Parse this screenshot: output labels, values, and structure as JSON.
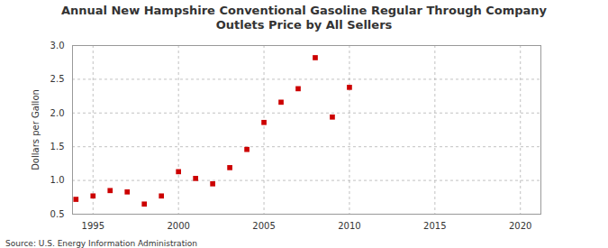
{
  "chart_data": {
    "type": "scatter",
    "title": "Annual New Hampshire Conventional Gasoline Regular Through Company Outlets Price by All Sellers",
    "y_label": "Dollars per Gallon",
    "source": "Source: U.S. Energy Information Administration",
    "x": [
      1994,
      1995,
      1996,
      1997,
      1998,
      1999,
      2000,
      2001,
      2002,
      2003,
      2004,
      2005,
      2006,
      2007,
      2008,
      2009,
      2010
    ],
    "values": [
      0.72,
      0.77,
      0.85,
      0.83,
      0.65,
      0.77,
      1.13,
      1.03,
      0.95,
      1.19,
      1.46,
      1.86,
      2.16,
      2.36,
      2.82,
      1.94,
      2.38
    ],
    "color": "#cc0000",
    "marker": "square",
    "xlim": [
      1993.8,
      2021.2
    ],
    "xticks": [
      1995,
      2000,
      2005,
      2010,
      2015,
      2020
    ],
    "ylim": [
      0.5,
      3.0
    ],
    "yticks": [
      {
        "value": 0.5,
        "label": "0.5"
      },
      {
        "value": 1.0,
        "label": "1.0"
      },
      {
        "value": 1.5,
        "label": "1.5"
      },
      {
        "value": 2.0,
        "label": "2.0"
      },
      {
        "value": 2.5,
        "label": "2.5"
      },
      {
        "value": 3.0,
        "label": "3.0"
      }
    ],
    "grid": true
  }
}
